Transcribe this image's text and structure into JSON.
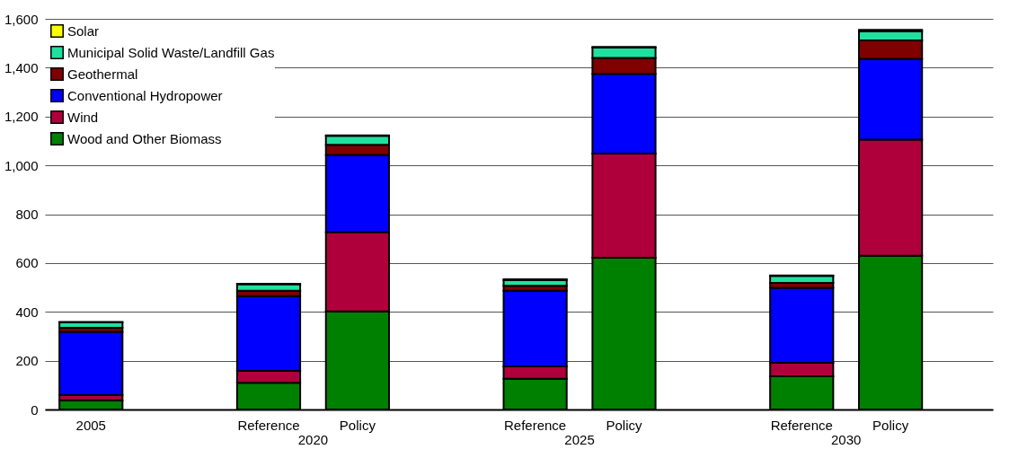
{
  "chart_data": {
    "type": "bar",
    "stacked": true,
    "categories": [
      "2005",
      null,
      "Reference",
      "Policy",
      null,
      "Reference",
      "Policy",
      null,
      "Reference",
      "Policy"
    ],
    "series": [
      {
        "name": "Wood and Other Biomass",
        "color": "#008000",
        "values": [
          38,
          null,
          109,
          402,
          null,
          126,
          622,
          null,
          136,
          630
        ]
      },
      {
        "name": "Wind",
        "color": "#b0003c",
        "values": [
          21,
          null,
          49,
          324,
          null,
          51,
          426,
          null,
          55,
          475
        ]
      },
      {
        "name": "Conventional Hydropower",
        "color": "#0000ff",
        "values": [
          259,
          null,
          306,
          317,
          null,
          309,
          327,
          null,
          307,
          331
        ]
      },
      {
        "name": "Geothermal",
        "color": "#800000",
        "values": [
          17,
          null,
          22,
          41,
          null,
          21,
          65,
          null,
          21,
          76
        ]
      },
      {
        "name": "Municipal Solid Waste/Landfill Gas",
        "color": "#20e0a0",
        "values": [
          22,
          null,
          27,
          37,
          null,
          24,
          42,
          null,
          28,
          37
        ]
      },
      {
        "name": "Solar",
        "color": "#ffff00",
        "values": [
          2,
          null,
          2,
          2,
          null,
          2,
          3,
          null,
          2,
          6
        ]
      }
    ],
    "ylim": [
      0,
      1600
    ],
    "yticks": [
      0,
      200,
      400,
      600,
      800,
      {
        "value": 1000,
        "label": "1,000"
      },
      {
        "value": 1200,
        "label": "1,200"
      },
      {
        "value": 1400,
        "label": "1,400"
      },
      {
        "value": 1600,
        "label": "1,600"
      }
    ],
    "grid": "y",
    "legend": "top left",
    "annotations": [
      "2020",
      "2025",
      "2030"
    ]
  }
}
